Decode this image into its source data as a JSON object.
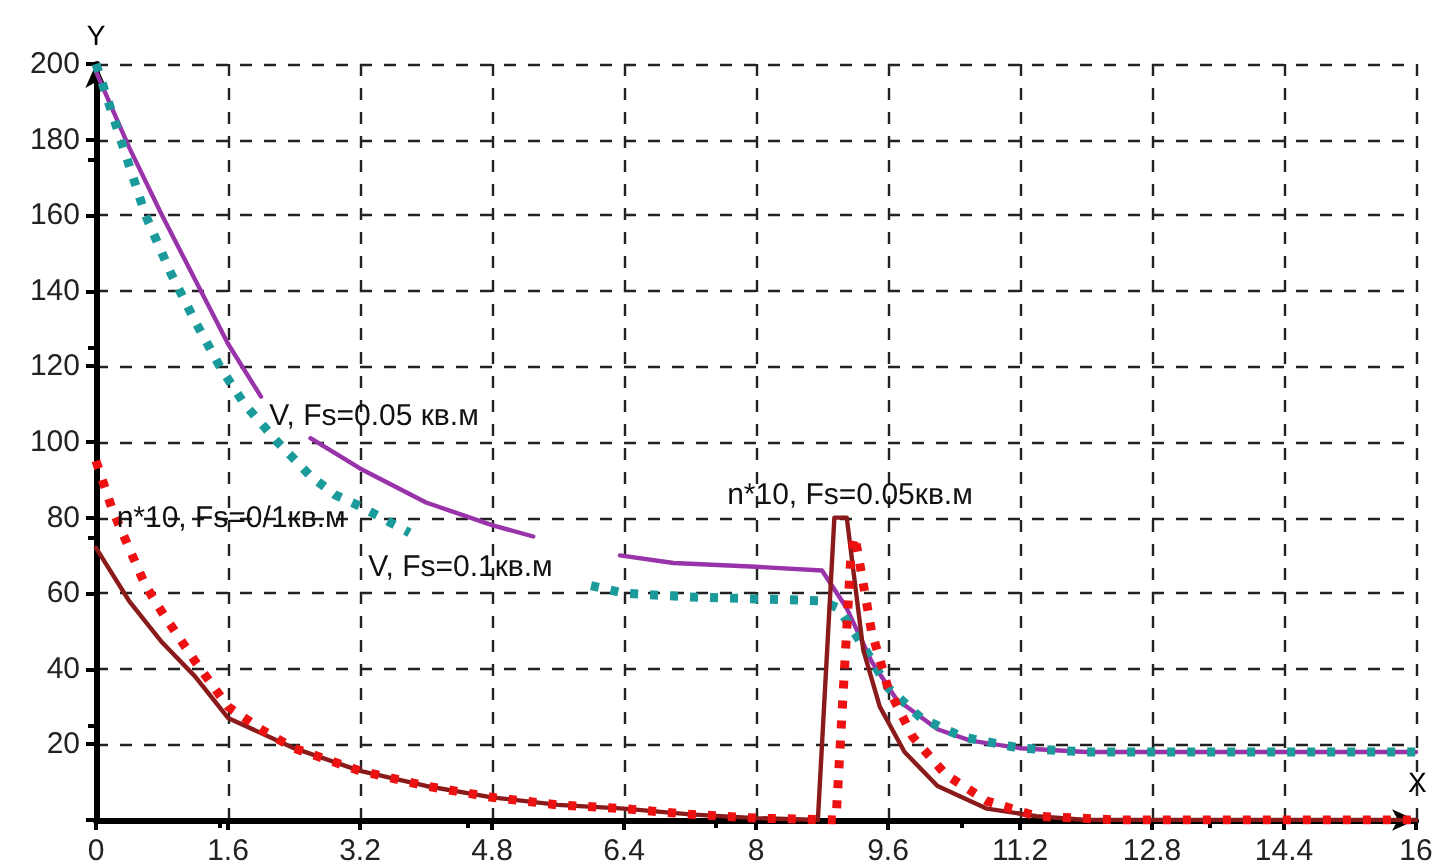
{
  "chart_data": {
    "type": "line",
    "xlabel": "X",
    "ylabel": "Y",
    "xlim": [
      0,
      16
    ],
    "xticks": [
      0,
      1.6,
      3.2,
      4.8,
      6.4,
      8,
      9.6,
      11.2,
      12.8,
      14.4,
      16
    ],
    "ylim": [
      0,
      200
    ],
    "yticks": [
      {
        "value": 0,
        "label": null
      },
      20,
      40,
      60,
      80,
      100,
      120,
      140,
      160,
      180,
      200
    ],
    "grid": true,
    "marker": "none",
    "series": [
      {
        "color": "#9933aa",
        "line_style": "solid",
        "x": [
          0,
          0.4,
          0.8,
          1.2,
          1.6,
          2.0,
          2.3,
          2.6,
          3.2,
          4.0,
          4.8,
          5.3,
          5.9,
          6.35,
          7.0,
          8.0,
          8.8,
          9.1,
          9.4,
          9.7,
          10.2,
          10.6,
          11.2,
          12.0,
          16
        ],
        "values": [
          198,
          178,
          160,
          143,
          126,
          112,
          null,
          101,
          93,
          84,
          78,
          75,
          null,
          70,
          68,
          67,
          66,
          56,
          42,
          32,
          24,
          21,
          19,
          18,
          18
        ]
      },
      {
        "color": "#1a9a9a",
        "line_style": "dotted",
        "x": [
          0,
          0.3,
          0.6,
          0.9,
          1.2,
          1.5,
          1.8,
          2.2,
          2.6,
          2.9,
          3.2,
          3.8,
          4.6,
          6.0,
          6.4,
          7.2,
          8.8,
          9.0,
          9.3,
          9.6,
          10.0,
          10.5,
          11.2,
          12.0,
          16
        ],
        "values": [
          200,
          180,
          160,
          145,
          132,
          120,
          110,
          100,
          91,
          86,
          83,
          76,
          null,
          62,
          60,
          59,
          58,
          56,
          46,
          35,
          27,
          22,
          19,
          18,
          18
        ]
      },
      {
        "color": "#8b1a1a",
        "line_style": "solid",
        "x": [
          0,
          0.4,
          0.8,
          1.2,
          1.6,
          2.4,
          3.2,
          4.0,
          4.8,
          5.6,
          6.4,
          7.2,
          8.0,
          8.75,
          8.95,
          9.1,
          9.3,
          9.5,
          9.8,
          10.2,
          10.8,
          11.4,
          12.0,
          16
        ],
        "values": [
          72,
          58,
          47,
          38,
          27,
          19,
          13,
          9,
          6,
          4,
          3,
          1.5,
          0.5,
          0,
          80,
          80,
          45,
          30,
          18,
          9,
          3,
          1,
          0,
          0
        ]
      },
      {
        "color": "#ee1111",
        "line_style": "dotted",
        "x": [
          0,
          0.2,
          0.4,
          0.6,
          0.8,
          1.2,
          1.6,
          2.0,
          2.4,
          3.2,
          4.0,
          4.8,
          5.6,
          6.4,
          7.2,
          8.0,
          8.97,
          9.15,
          9.2,
          9.4,
          9.6,
          9.9,
          10.3,
          10.8,
          11.4,
          12.4,
          16
        ],
        "values": [
          95,
          82,
          72,
          62,
          55,
          42,
          30,
          24,
          19,
          13,
          9,
          6,
          4,
          3,
          1.5,
          0.5,
          0,
          70,
          75,
          50,
          35,
          22,
          12,
          5,
          1,
          0,
          0
        ]
      }
    ],
    "annotations": [
      "V, Fs=0.05 кв.м",
      "V, Fs=0.1кв.м",
      "n*10, Fs=0/1кв.м",
      "n*10, Fs=0.05кв.м"
    ]
  }
}
